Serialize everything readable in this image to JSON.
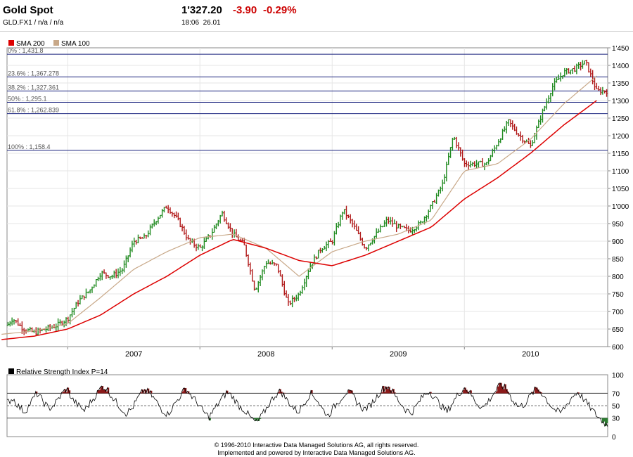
{
  "header": {
    "name": "Gold Spot",
    "symbol_line": "GLD.FX1  /  n/a  /  n/a",
    "price": "1'327.20",
    "change": "-3.90",
    "change_pct": "-0.29%",
    "time": "18:06",
    "date": "26.01"
  },
  "colors": {
    "up": "#1f8a1f",
    "down": "#b01818",
    "sma200": "#dd0000",
    "sma100": "#c8a888",
    "fib_line": "#1a237e"
  },
  "chart_data": [
    {
      "type": "line",
      "title": "Gold Spot",
      "legend": [
        {
          "name": "SMA 200",
          "color": "#dd0000"
        },
        {
          "name": "SMA 100",
          "color": "#c8a888"
        }
      ],
      "x_labels": [
        "2007",
        "2008",
        "2009",
        "2010"
      ],
      "ylim": [
        600,
        1450
      ],
      "y_ticks": [
        "600",
        "650",
        "700",
        "750",
        "800",
        "850",
        "900",
        "950",
        "1'000",
        "1'050",
        "1'100",
        "1'150",
        "1'200",
        "1'250",
        "1'300",
        "1'350",
        "1'400",
        "1'450"
      ],
      "fib_levels": [
        {
          "label": "0% : 1,431.8",
          "value": 1431.8
        },
        {
          "label": "23.6% : 1,367.278",
          "value": 1367.278
        },
        {
          "label": "38.2% : 1,327.361",
          "value": 1327.361
        },
        {
          "label": "50% : 1,295.1",
          "value": 1295.1
        },
        {
          "label": "61.8% : 1,262.839",
          "value": 1262.839
        },
        {
          "label": "100% : 1,158.4",
          "value": 1158.4
        }
      ],
      "series": [
        {
          "name": "Gold Spot",
          "points": [
            [
              "2006-07",
              640
            ],
            [
              "2006-08",
              680
            ],
            [
              "2006-09",
              650
            ],
            [
              "2006-10",
              640
            ],
            [
              "2006-11",
              650
            ],
            [
              "2006-12",
              660
            ],
            [
              "2007-01",
              680
            ],
            [
              "2007-02",
              730
            ],
            [
              "2007-03",
              760
            ],
            [
              "2007-04",
              810
            ],
            [
              "2007-05",
              800
            ],
            [
              "2007-06",
              820
            ],
            [
              "2007-07",
              900
            ],
            [
              "2007-08",
              910
            ],
            [
              "2007-09",
              960
            ],
            [
              "2007-10",
              1000
            ],
            [
              "2007-11",
              960
            ],
            [
              "2007-12",
              900
            ],
            [
              "2008-01",
              880
            ],
            [
              "2008-02",
              920
            ],
            [
              "2008-03",
              980
            ],
            [
              "2008-04",
              920
            ],
            [
              "2008-05",
              890
            ],
            [
              "2008-06",
              760
            ],
            [
              "2008-07",
              840
            ],
            [
              "2008-08",
              830
            ],
            [
              "2008-09",
              720
            ],
            [
              "2008-10",
              750
            ],
            [
              "2008-11",
              830
            ],
            [
              "2008-12",
              880
            ],
            [
              "2009-01",
              900
            ],
            [
              "2009-02",
              990
            ],
            [
              "2009-03",
              940
            ],
            [
              "2009-04",
              880
            ],
            [
              "2009-05",
              920
            ],
            [
              "2009-06",
              960
            ],
            [
              "2009-07",
              940
            ],
            [
              "2009-08",
              930
            ],
            [
              "2009-09",
              950
            ],
            [
              "2009-10",
              1000
            ],
            [
              "2009-11",
              1060
            ],
            [
              "2009-12",
              1200
            ],
            [
              "2010-01",
              1120
            ],
            [
              "2010-02",
              1120
            ],
            [
              "2010-03",
              1120
            ],
            [
              "2010-04",
              1180
            ],
            [
              "2010-05",
              1240
            ],
            [
              "2010-06",
              1200
            ],
            [
              "2010-07",
              1170
            ],
            [
              "2010-08",
              1260
            ],
            [
              "2010-09",
              1340
            ],
            [
              "2010-10",
              1380
            ],
            [
              "2010-11",
              1390
            ],
            [
              "2010-12",
              1410
            ],
            [
              "2011-01",
              1327.2
            ]
          ]
        },
        {
          "name": "SMA 200",
          "points": [
            [
              "2006-07",
              620
            ],
            [
              "2006-10",
              630
            ],
            [
              "2007-01",
              650
            ],
            [
              "2007-04",
              690
            ],
            [
              "2007-07",
              750
            ],
            [
              "2007-10",
              800
            ],
            [
              "2008-01",
              860
            ],
            [
              "2008-04",
              905
            ],
            [
              "2008-07",
              880
            ],
            [
              "2008-10",
              845
            ],
            [
              "2009-01",
              830
            ],
            [
              "2009-04",
              860
            ],
            [
              "2009-07",
              900
            ],
            [
              "2009-10",
              940
            ],
            [
              "2010-01",
              1020
            ],
            [
              "2010-04",
              1080
            ],
            [
              "2010-07",
              1150
            ],
            [
              "2010-10",
              1230
            ],
            [
              "2011-01",
              1300
            ]
          ]
        },
        {
          "name": "SMA 100",
          "points": [
            [
              "2006-07",
              635
            ],
            [
              "2006-10",
              645
            ],
            [
              "2007-01",
              665
            ],
            [
              "2007-04",
              740
            ],
            [
              "2007-07",
              820
            ],
            [
              "2007-10",
              870
            ],
            [
              "2008-01",
              910
            ],
            [
              "2008-04",
              920
            ],
            [
              "2008-07",
              880
            ],
            [
              "2008-10",
              800
            ],
            [
              "2009-01",
              870
            ],
            [
              "2009-04",
              900
            ],
            [
              "2009-07",
              920
            ],
            [
              "2009-10",
              960
            ],
            [
              "2010-01",
              1100
            ],
            [
              "2010-04",
              1120
            ],
            [
              "2010-07",
              1190
            ],
            [
              "2010-10",
              1290
            ],
            [
              "2011-01",
              1370
            ]
          ]
        }
      ]
    },
    {
      "type": "line",
      "title": "Relative Strength Index P=14",
      "ylim": [
        0,
        100
      ],
      "y_ticks": [
        "0",
        "30",
        "50",
        "70",
        "100"
      ],
      "levels": [
        30,
        50,
        70
      ],
      "series": [
        {
          "name": "RSI",
          "values": [
            55,
            62,
            48,
            40,
            55,
            70,
            58,
            45,
            52,
            66,
            78,
            60,
            50,
            42,
            55,
            68,
            82,
            74,
            60,
            48,
            38,
            45,
            62,
            75,
            70,
            58,
            44,
            36,
            50,
            64,
            78,
            66,
            55,
            40,
            32,
            46,
            60,
            72,
            64,
            50,
            42,
            30,
            22,
            36,
            52,
            66,
            74,
            60,
            48,
            40,
            55,
            70,
            62,
            45,
            34,
            48,
            60,
            72,
            68,
            54,
            44,
            50,
            62,
            76,
            82,
            70,
            56,
            44,
            38,
            52,
            66,
            74,
            62,
            50,
            40,
            56,
            70,
            80,
            68,
            54,
            46,
            58,
            72,
            84,
            76,
            60,
            48,
            52,
            66,
            78,
            70,
            56,
            44,
            38,
            50,
            64,
            72,
            60,
            48,
            36,
            26,
            18
          ]
        }
      ]
    }
  ],
  "footer": {
    "line1": "© 1996-2010 Interactive Data Managed Solutions AG, all rights reserved.",
    "line2": "Implemented and powered by Interactive Data Managed Solutions AG."
  }
}
